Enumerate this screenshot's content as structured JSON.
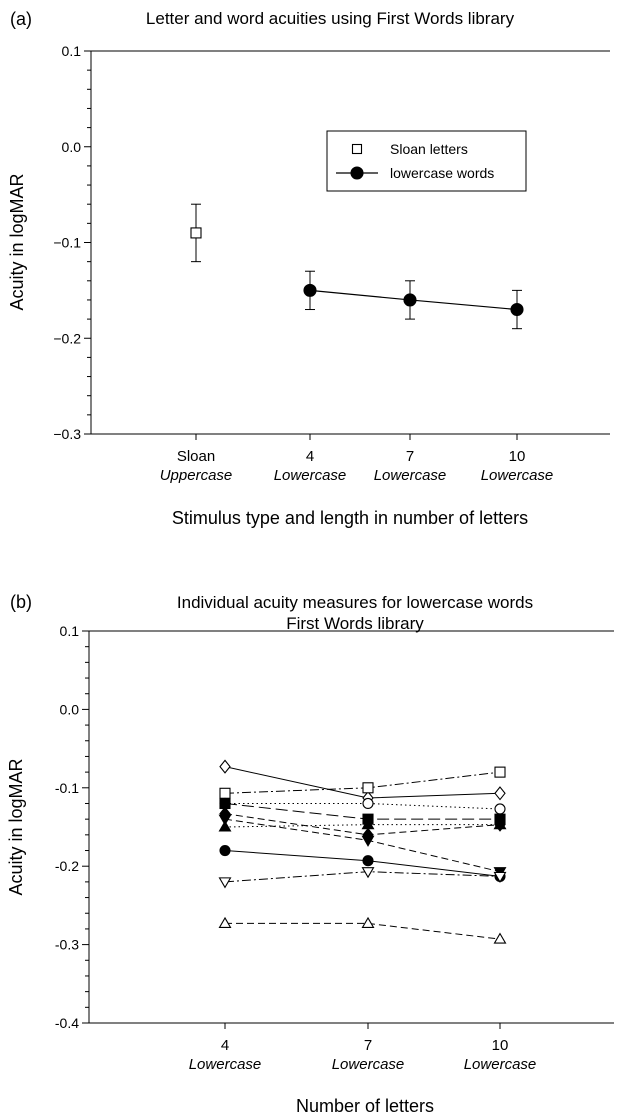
{
  "chart_data": [
    {
      "panel": "(a)",
      "type": "scatter",
      "title": "Letter and word acuities using First Words library",
      "xlabel": "Stimulus type and length in number of letters",
      "ylabel": "Acuity in logMAR",
      "ylim": [
        -0.3,
        0.1
      ],
      "yticks": [
        "0.1",
        "0.0",
        "−0.1",
        "−0.2",
        "−0.3"
      ],
      "yticks_values": [
        0.1,
        0.0,
        -0.1,
        -0.2,
        -0.3
      ],
      "categories": [
        {
          "main": "Sloan",
          "sub": "Uppercase"
        },
        {
          "main": "4",
          "sub": "Lowercase"
        },
        {
          "main": "7",
          "sub": "Lowercase"
        },
        {
          "main": "10",
          "sub": "Lowercase"
        }
      ],
      "legend_position": "upper-right",
      "series": [
        {
          "name": "Sloan letters",
          "marker": "open-square",
          "line": "none",
          "x": [
            "Sloan"
          ],
          "values": [
            -0.09
          ],
          "err_low": [
            -0.12
          ],
          "err_high": [
            -0.06
          ]
        },
        {
          "name": "lowercase words",
          "marker": "filled-circle",
          "line": "solid",
          "x": [
            "4",
            "7",
            "10"
          ],
          "values": [
            -0.15,
            -0.16,
            -0.17
          ],
          "err_low": [
            -0.17,
            -0.18,
            -0.19
          ],
          "err_high": [
            -0.13,
            -0.14,
            -0.15
          ]
        }
      ]
    },
    {
      "panel": "(b)",
      "type": "line",
      "title": "Individual acuity measures for lowercase words",
      "subtitle": "First Words library",
      "xlabel": "Number of letters",
      "ylabel": "Acuity in logMAR",
      "ylim": [
        -0.4,
        0.1
      ],
      "yticks": [
        "0.1",
        "0.0",
        "-0.1",
        "-0.2",
        "-0.3",
        "-0.4"
      ],
      "yticks_values": [
        0.1,
        0.0,
        -0.1,
        -0.2,
        -0.3,
        -0.4
      ],
      "categories": [
        {
          "main": "4",
          "sub": "Lowercase"
        },
        {
          "main": "7",
          "sub": "Lowercase"
        },
        {
          "main": "10",
          "sub": "Lowercase"
        }
      ],
      "series": [
        {
          "marker": "open-diamond",
          "dash": "solid",
          "values": [
            -0.073,
            -0.113,
            -0.107
          ]
        },
        {
          "marker": "open-square",
          "dash": "dashdot",
          "values": [
            -0.107,
            -0.1,
            -0.08
          ]
        },
        {
          "marker": "open-circle",
          "dash": "dotted",
          "values": [
            -0.12,
            -0.12,
            -0.127
          ]
        },
        {
          "marker": "filled-square",
          "dash": "longdash",
          "values": [
            -0.12,
            -0.14,
            -0.14
          ]
        },
        {
          "marker": "filled-diamond",
          "dash": "dashed",
          "values": [
            -0.133,
            -0.16,
            -0.147
          ]
        },
        {
          "marker": "filled-triangle-down",
          "dash": "dashed",
          "values": [
            -0.14,
            -0.167,
            -0.207
          ]
        },
        {
          "marker": "filled-triangle-up",
          "dash": "dotted",
          "values": [
            -0.15,
            -0.147,
            -0.147
          ]
        },
        {
          "marker": "filled-circle",
          "dash": "solid",
          "values": [
            -0.18,
            -0.193,
            -0.213
          ]
        },
        {
          "marker": "open-triangle-down",
          "dash": "dashdot",
          "values": [
            -0.22,
            -0.207,
            -0.213
          ]
        },
        {
          "marker": "open-triangle-up",
          "dash": "dashed",
          "values": [
            -0.273,
            -0.273,
            -0.293
          ]
        }
      ]
    }
  ]
}
